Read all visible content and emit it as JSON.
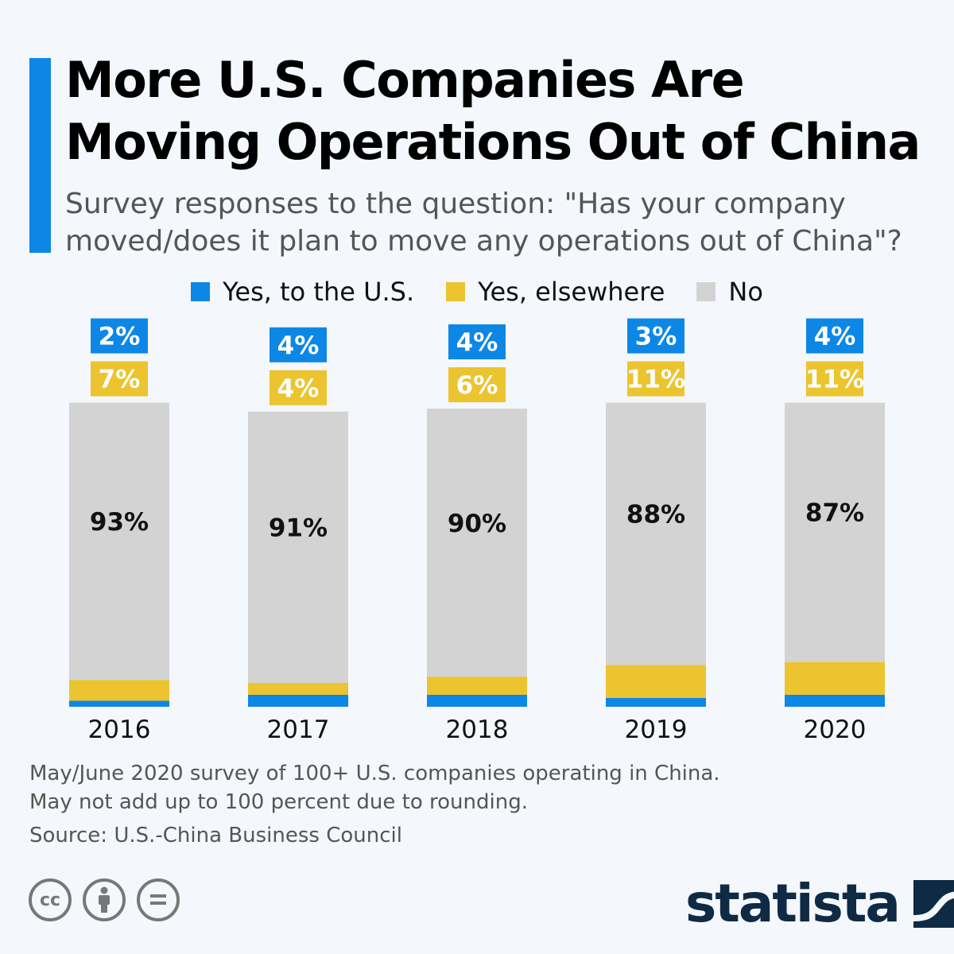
{
  "header": {
    "title": "More U.S. Companies Are Moving Operations Out of China",
    "subtitle": "Survey responses to the question: \"Has your company moved/does it plan to move any operations out of China\"?"
  },
  "chart_data": {
    "type": "bar",
    "stacked": true,
    "categories": [
      "2016",
      "2017",
      "2018",
      "2019",
      "2020"
    ],
    "series": [
      {
        "name": "Yes, to the U.S.",
        "color": "#0d87e6",
        "values": [
          2,
          4,
          4,
          3,
          4
        ],
        "labels": [
          "2%",
          "4%",
          "4%",
          "3%",
          "4%"
        ]
      },
      {
        "name": "Yes, elsewhere",
        "color": "#ebc42f",
        "values": [
          7,
          4,
          6,
          11,
          11
        ],
        "labels": [
          "7%",
          "4%",
          "6%",
          "11%",
          "11%"
        ]
      },
      {
        "name": "No",
        "color": "#d3d3d3",
        "values": [
          93,
          91,
          90,
          88,
          87
        ],
        "labels": [
          "93%",
          "91%",
          "90%",
          "88%",
          "87%"
        ]
      }
    ],
    "legend_position": "top",
    "grid": false,
    "ylim": [
      0,
      102
    ]
  },
  "footer": {
    "note1": "May/June 2020 survey of 100+ U.S. companies operating in China.",
    "note2": "May not add up to 100 percent due to rounding.",
    "source": "Source: U.S.-China Business Council",
    "license_icons": [
      "cc-icon",
      "attribution-icon",
      "no-derivatives-icon"
    ],
    "logo": "statista"
  }
}
